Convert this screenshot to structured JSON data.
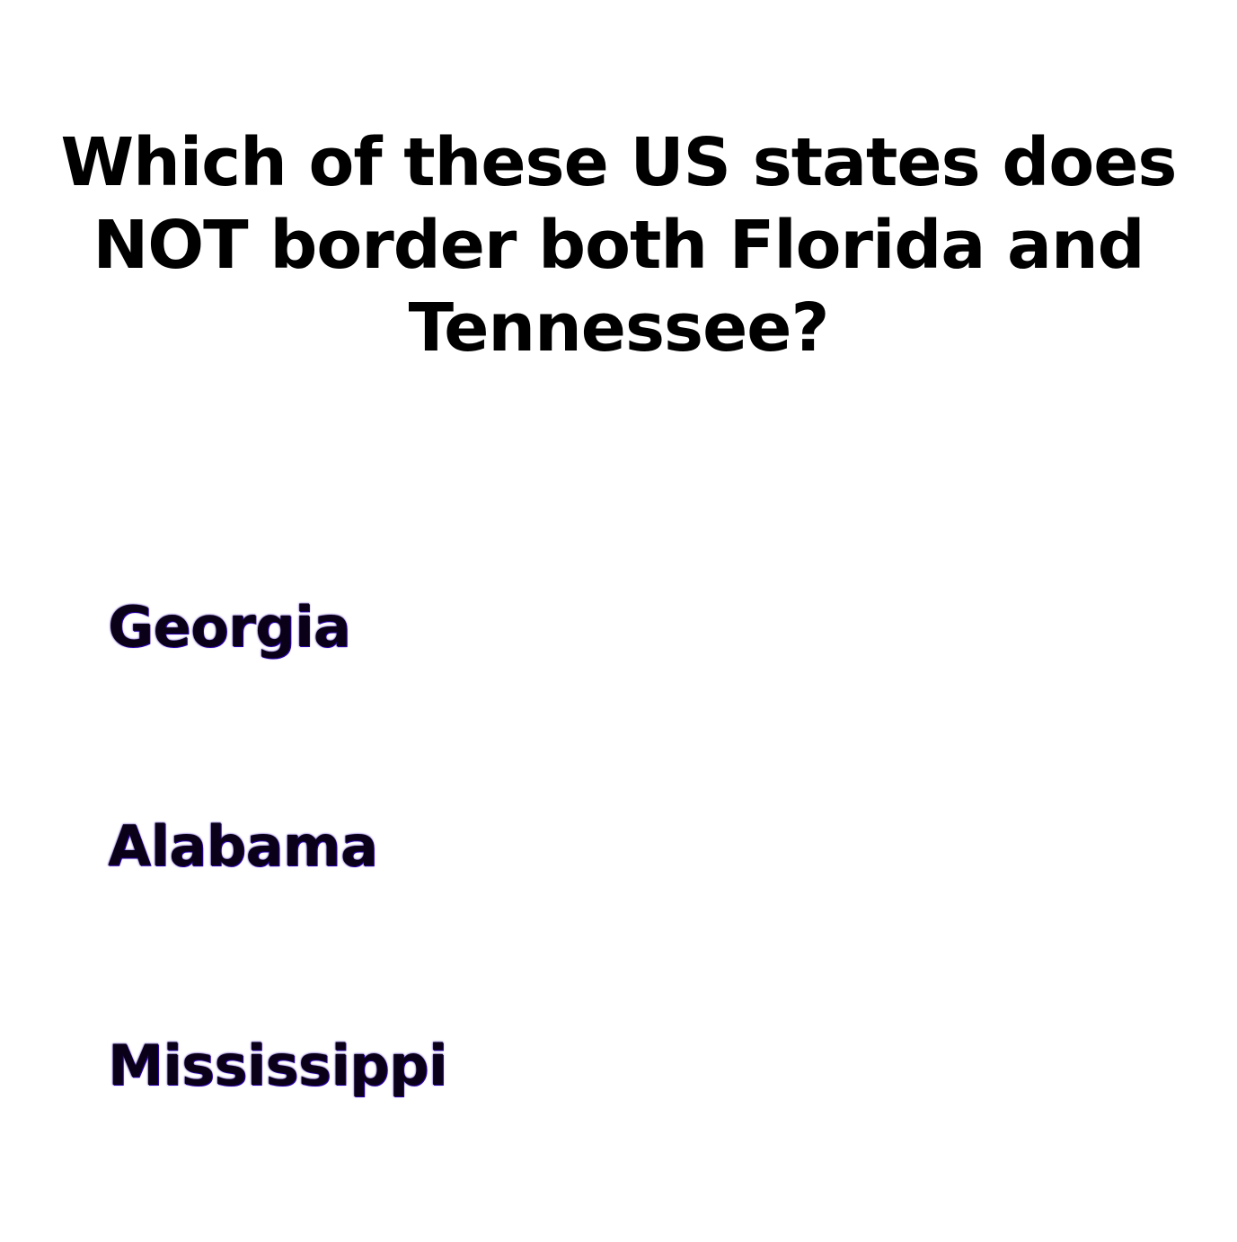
{
  "question": {
    "text": "Which of these US states does NOT border both Florida and Tennessee?"
  },
  "answers": [
    {
      "label": "Georgia"
    },
    {
      "label": "Alabama"
    },
    {
      "label": "Mississippi"
    }
  ],
  "colors": {
    "question_text": "#000000",
    "answer_text": "#0a0018",
    "answer_fringe": "#2a00a8",
    "background": "#ffffff"
  }
}
